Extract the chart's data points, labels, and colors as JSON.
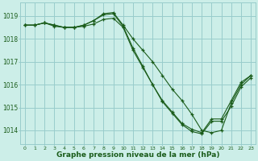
{
  "bg_color": "#cceee8",
  "grid_color": "#99cccc",
  "line_color": "#1a5c1a",
  "marker_color": "#1a5c1a",
  "xlabel": "Graphe pression niveau de la mer (hPa)",
  "xlabel_fontsize": 6.5,
  "ylabel_ticks": [
    1014,
    1015,
    1016,
    1017,
    1018,
    1019
  ],
  "xlim": [
    -0.5,
    23.5
  ],
  "ylim": [
    1013.4,
    1019.6
  ],
  "series": [
    {
      "x": [
        0,
        1,
        2,
        3,
        4,
        5,
        6,
        7,
        8,
        9,
        10,
        11,
        12,
        13,
        14,
        15,
        16,
        17,
        18,
        19,
        20,
        21,
        22,
        23
      ],
      "y": [
        1018.6,
        1018.6,
        1018.7,
        1018.6,
        1018.5,
        1018.5,
        1018.6,
        1018.8,
        1019.1,
        1019.15,
        1018.6,
        1018.0,
        1017.5,
        1017.0,
        1016.4,
        1015.8,
        1015.3,
        1014.7,
        1014.0,
        1013.9,
        1014.0,
        1015.2,
        1016.0,
        1016.4
      ]
    },
    {
      "x": [
        0,
        1,
        2,
        3,
        4,
        5,
        6,
        7,
        8,
        9,
        10,
        11,
        12,
        13,
        14,
        15,
        16,
        17,
        18,
        19,
        20,
        21,
        22,
        23
      ],
      "y": [
        1018.6,
        1018.6,
        1018.7,
        1018.6,
        1018.5,
        1018.5,
        1018.6,
        1018.8,
        1019.05,
        1019.1,
        1018.55,
        1017.6,
        1016.8,
        1016.0,
        1015.3,
        1014.8,
        1014.3,
        1014.05,
        1013.9,
        1014.5,
        1014.5,
        1015.3,
        1016.1,
        1016.4
      ]
    },
    {
      "x": [
        0,
        1,
        2,
        3,
        4,
        5,
        6,
        7,
        8,
        9,
        10,
        11,
        12,
        13,
        14,
        15,
        16,
        17,
        18,
        19,
        20,
        21,
        22,
        23
      ],
      "y": [
        1018.6,
        1018.6,
        1018.7,
        1018.55,
        1018.5,
        1018.5,
        1018.55,
        1018.65,
        1018.85,
        1018.9,
        1018.5,
        1017.5,
        1016.75,
        1016.0,
        1015.25,
        1014.75,
        1014.25,
        1013.95,
        1013.85,
        1014.4,
        1014.4,
        1015.05,
        1015.9,
        1016.3
      ]
    }
  ],
  "x_ticks": [
    0,
    1,
    2,
    3,
    4,
    5,
    6,
    7,
    8,
    9,
    10,
    11,
    12,
    13,
    14,
    15,
    16,
    17,
    18,
    19,
    20,
    21,
    22,
    23
  ]
}
